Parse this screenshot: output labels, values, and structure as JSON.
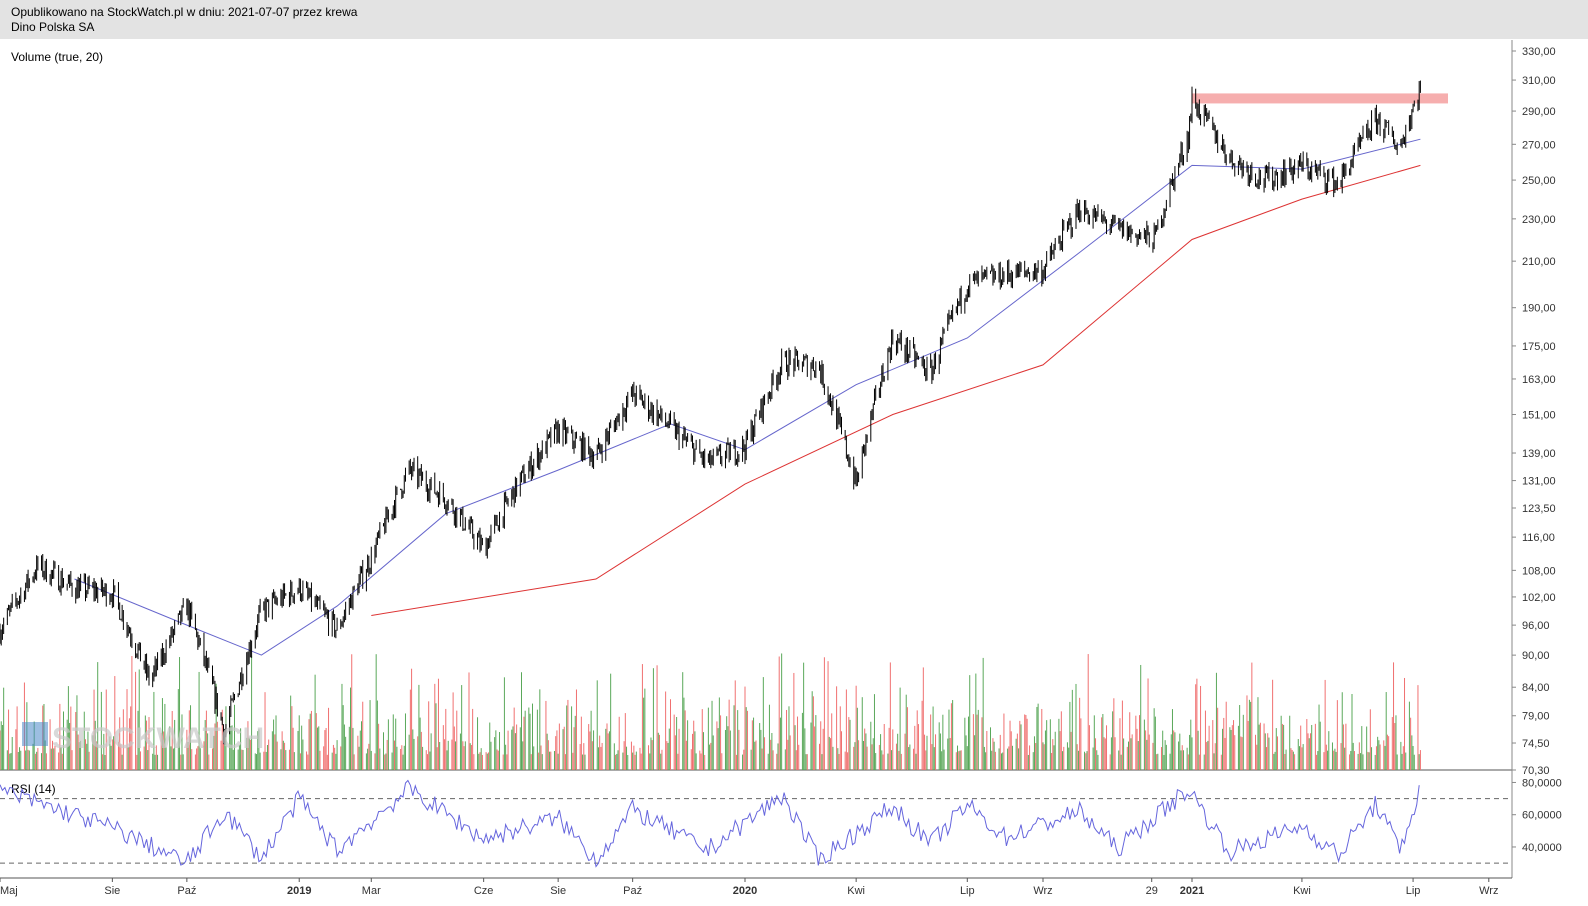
{
  "header": {
    "line1": "Opublikowano na StockWatch.pl w dniu: 2021-07-07 przez krewa",
    "line2": "Dino Polska SA"
  },
  "watermark": "STOCKWATCH",
  "chart_data": {
    "type": "candlestick",
    "symbol": "Dino Polska SA",
    "volume_label": "Volume (true, 20)",
    "rsi_label": "RSI (14)",
    "colors": {
      "price": "#000000",
      "ma_short": "#6666cc",
      "ma_long": "#dd3333",
      "volume_up": "#5aa85a",
      "volume_down": "#f07070",
      "resistance": "#f5a0a0",
      "rsi": "#6666dd"
    },
    "price_axis_ticks": [
      "330,00",
      "310,00",
      "290,00",
      "270,00",
      "250,00",
      "230,00",
      "210,00",
      "190,00",
      "175,00",
      "163,00",
      "151,00",
      "139,00",
      "131,00",
      "123,50",
      "116,00",
      "108,00",
      "102,00",
      "96,00",
      "90,00",
      "84,00",
      "79,00",
      "74,50",
      "70,30"
    ],
    "price_scale": "log",
    "rsi_axis_ticks": [
      "80,0000",
      "60,0000",
      "40,0000"
    ],
    "rsi_levels": [
      70,
      30
    ],
    "x_axis_labels": [
      "Maj",
      "Sie",
      "Paź",
      "2019",
      "Mar",
      "Cze",
      "Sie",
      "Paź",
      "2020",
      "Kwi",
      "Lip",
      "Wrz",
      "29",
      "2021",
      "Kwi",
      "Lip",
      "Wrz"
    ],
    "close_series": [
      {
        "date": "2018-05",
        "close": 95
      },
      {
        "date": "2018-06",
        "close": 109
      },
      {
        "date": "2018-07",
        "close": 104
      },
      {
        "date": "2018-08",
        "close": 103
      },
      {
        "date": "2018-09",
        "close": 85
      },
      {
        "date": "2018-10",
        "close": 100
      },
      {
        "date": "2018-11",
        "close": 76
      },
      {
        "date": "2018-12",
        "close": 99
      },
      {
        "date": "2019-01",
        "close": 104
      },
      {
        "date": "2019-02",
        "close": 95
      },
      {
        "date": "2019-03",
        "close": 111
      },
      {
        "date": "2019-04",
        "close": 134
      },
      {
        "date": "2019-05",
        "close": 126
      },
      {
        "date": "2019-06",
        "close": 113
      },
      {
        "date": "2019-07",
        "close": 131
      },
      {
        "date": "2019-08",
        "close": 146
      },
      {
        "date": "2019-09",
        "close": 138
      },
      {
        "date": "2019-10",
        "close": 158
      },
      {
        "date": "2019-11",
        "close": 147
      },
      {
        "date": "2019-12",
        "close": 136
      },
      {
        "date": "2020-01",
        "close": 141
      },
      {
        "date": "2020-02",
        "close": 169
      },
      {
        "date": "2020-03",
        "close": 168
      },
      {
        "date": "2020-04",
        "close": 130
      },
      {
        "date": "2020-05",
        "close": 178
      },
      {
        "date": "2020-06",
        "close": 165
      },
      {
        "date": "2020-07",
        "close": 200
      },
      {
        "date": "2020-08",
        "close": 204
      },
      {
        "date": "2020-09",
        "close": 206
      },
      {
        "date": "2020-10",
        "close": 235
      },
      {
        "date": "2020-11",
        "close": 225
      },
      {
        "date": "2020-12",
        "close": 220
      },
      {
        "date": "2020-12-29",
        "close": 275
      },
      {
        "date": "2021-01",
        "close": 297
      },
      {
        "date": "2021-02",
        "close": 262
      },
      {
        "date": "2021-03",
        "close": 250
      },
      {
        "date": "2021-04",
        "close": 258
      },
      {
        "date": "2021-05",
        "close": 248
      },
      {
        "date": "2021-06",
        "close": 285
      },
      {
        "date": "2021-06-20",
        "close": 268
      },
      {
        "date": "2021-07-07",
        "close": 305
      }
    ],
    "ma_short_series": [
      {
        "date": "2018-07",
        "value": 106
      },
      {
        "date": "2018-10",
        "value": 96
      },
      {
        "date": "2018-12",
        "value": 90
      },
      {
        "date": "2019-02",
        "value": 100
      },
      {
        "date": "2019-05",
        "value": 122
      },
      {
        "date": "2019-08",
        "value": 134
      },
      {
        "date": "2019-11",
        "value": 148
      },
      {
        "date": "2020-01",
        "value": 140
      },
      {
        "date": "2020-04",
        "value": 161
      },
      {
        "date": "2020-07",
        "value": 178
      },
      {
        "date": "2020-10",
        "value": 214
      },
      {
        "date": "2021-01",
        "value": 258
      },
      {
        "date": "2021-04",
        "value": 256
      },
      {
        "date": "2021-07-07",
        "value": 273
      }
    ],
    "ma_long_series": [
      {
        "date": "2019-03",
        "value": 98
      },
      {
        "date": "2019-09",
        "value": 106
      },
      {
        "date": "2020-01",
        "value": 130
      },
      {
        "date": "2020-05",
        "value": 151
      },
      {
        "date": "2020-09",
        "value": 168
      },
      {
        "date": "2021-01",
        "value": 220
      },
      {
        "date": "2021-04",
        "value": 240
      },
      {
        "date": "2021-07-07",
        "value": 258
      }
    ],
    "resistance_level": 298,
    "resistance_from": "2021-01",
    "rsi_series": [
      {
        "date": "2018-05",
        "value": 75
      },
      {
        "date": "2018-08",
        "value": 52
      },
      {
        "date": "2018-10",
        "value": 30
      },
      {
        "date": "2018-11",
        "value": 62
      },
      {
        "date": "2018-12",
        "value": 33
      },
      {
        "date": "2019-01",
        "value": 70
      },
      {
        "date": "2019-02",
        "value": 38
      },
      {
        "date": "2019-04",
        "value": 76
      },
      {
        "date": "2019-06",
        "value": 45
      },
      {
        "date": "2019-08",
        "value": 58
      },
      {
        "date": "2019-09",
        "value": 32
      },
      {
        "date": "2019-10",
        "value": 63
      },
      {
        "date": "2019-12",
        "value": 38
      },
      {
        "date": "2020-02",
        "value": 72
      },
      {
        "date": "2020-03",
        "value": 32
      },
      {
        "date": "2020-05",
        "value": 65
      },
      {
        "date": "2020-06",
        "value": 42
      },
      {
        "date": "2020-07",
        "value": 66
      },
      {
        "date": "2020-08",
        "value": 46
      },
      {
        "date": "2020-10",
        "value": 62
      },
      {
        "date": "2020-11",
        "value": 39
      },
      {
        "date": "2020-12-29",
        "value": 76
      },
      {
        "date": "2021-02",
        "value": 37
      },
      {
        "date": "2021-04",
        "value": 53
      },
      {
        "date": "2021-05",
        "value": 35
      },
      {
        "date": "2021-06",
        "value": 67
      },
      {
        "date": "2021-06-20",
        "value": 38
      },
      {
        "date": "2021-07-07",
        "value": 76
      }
    ]
  }
}
